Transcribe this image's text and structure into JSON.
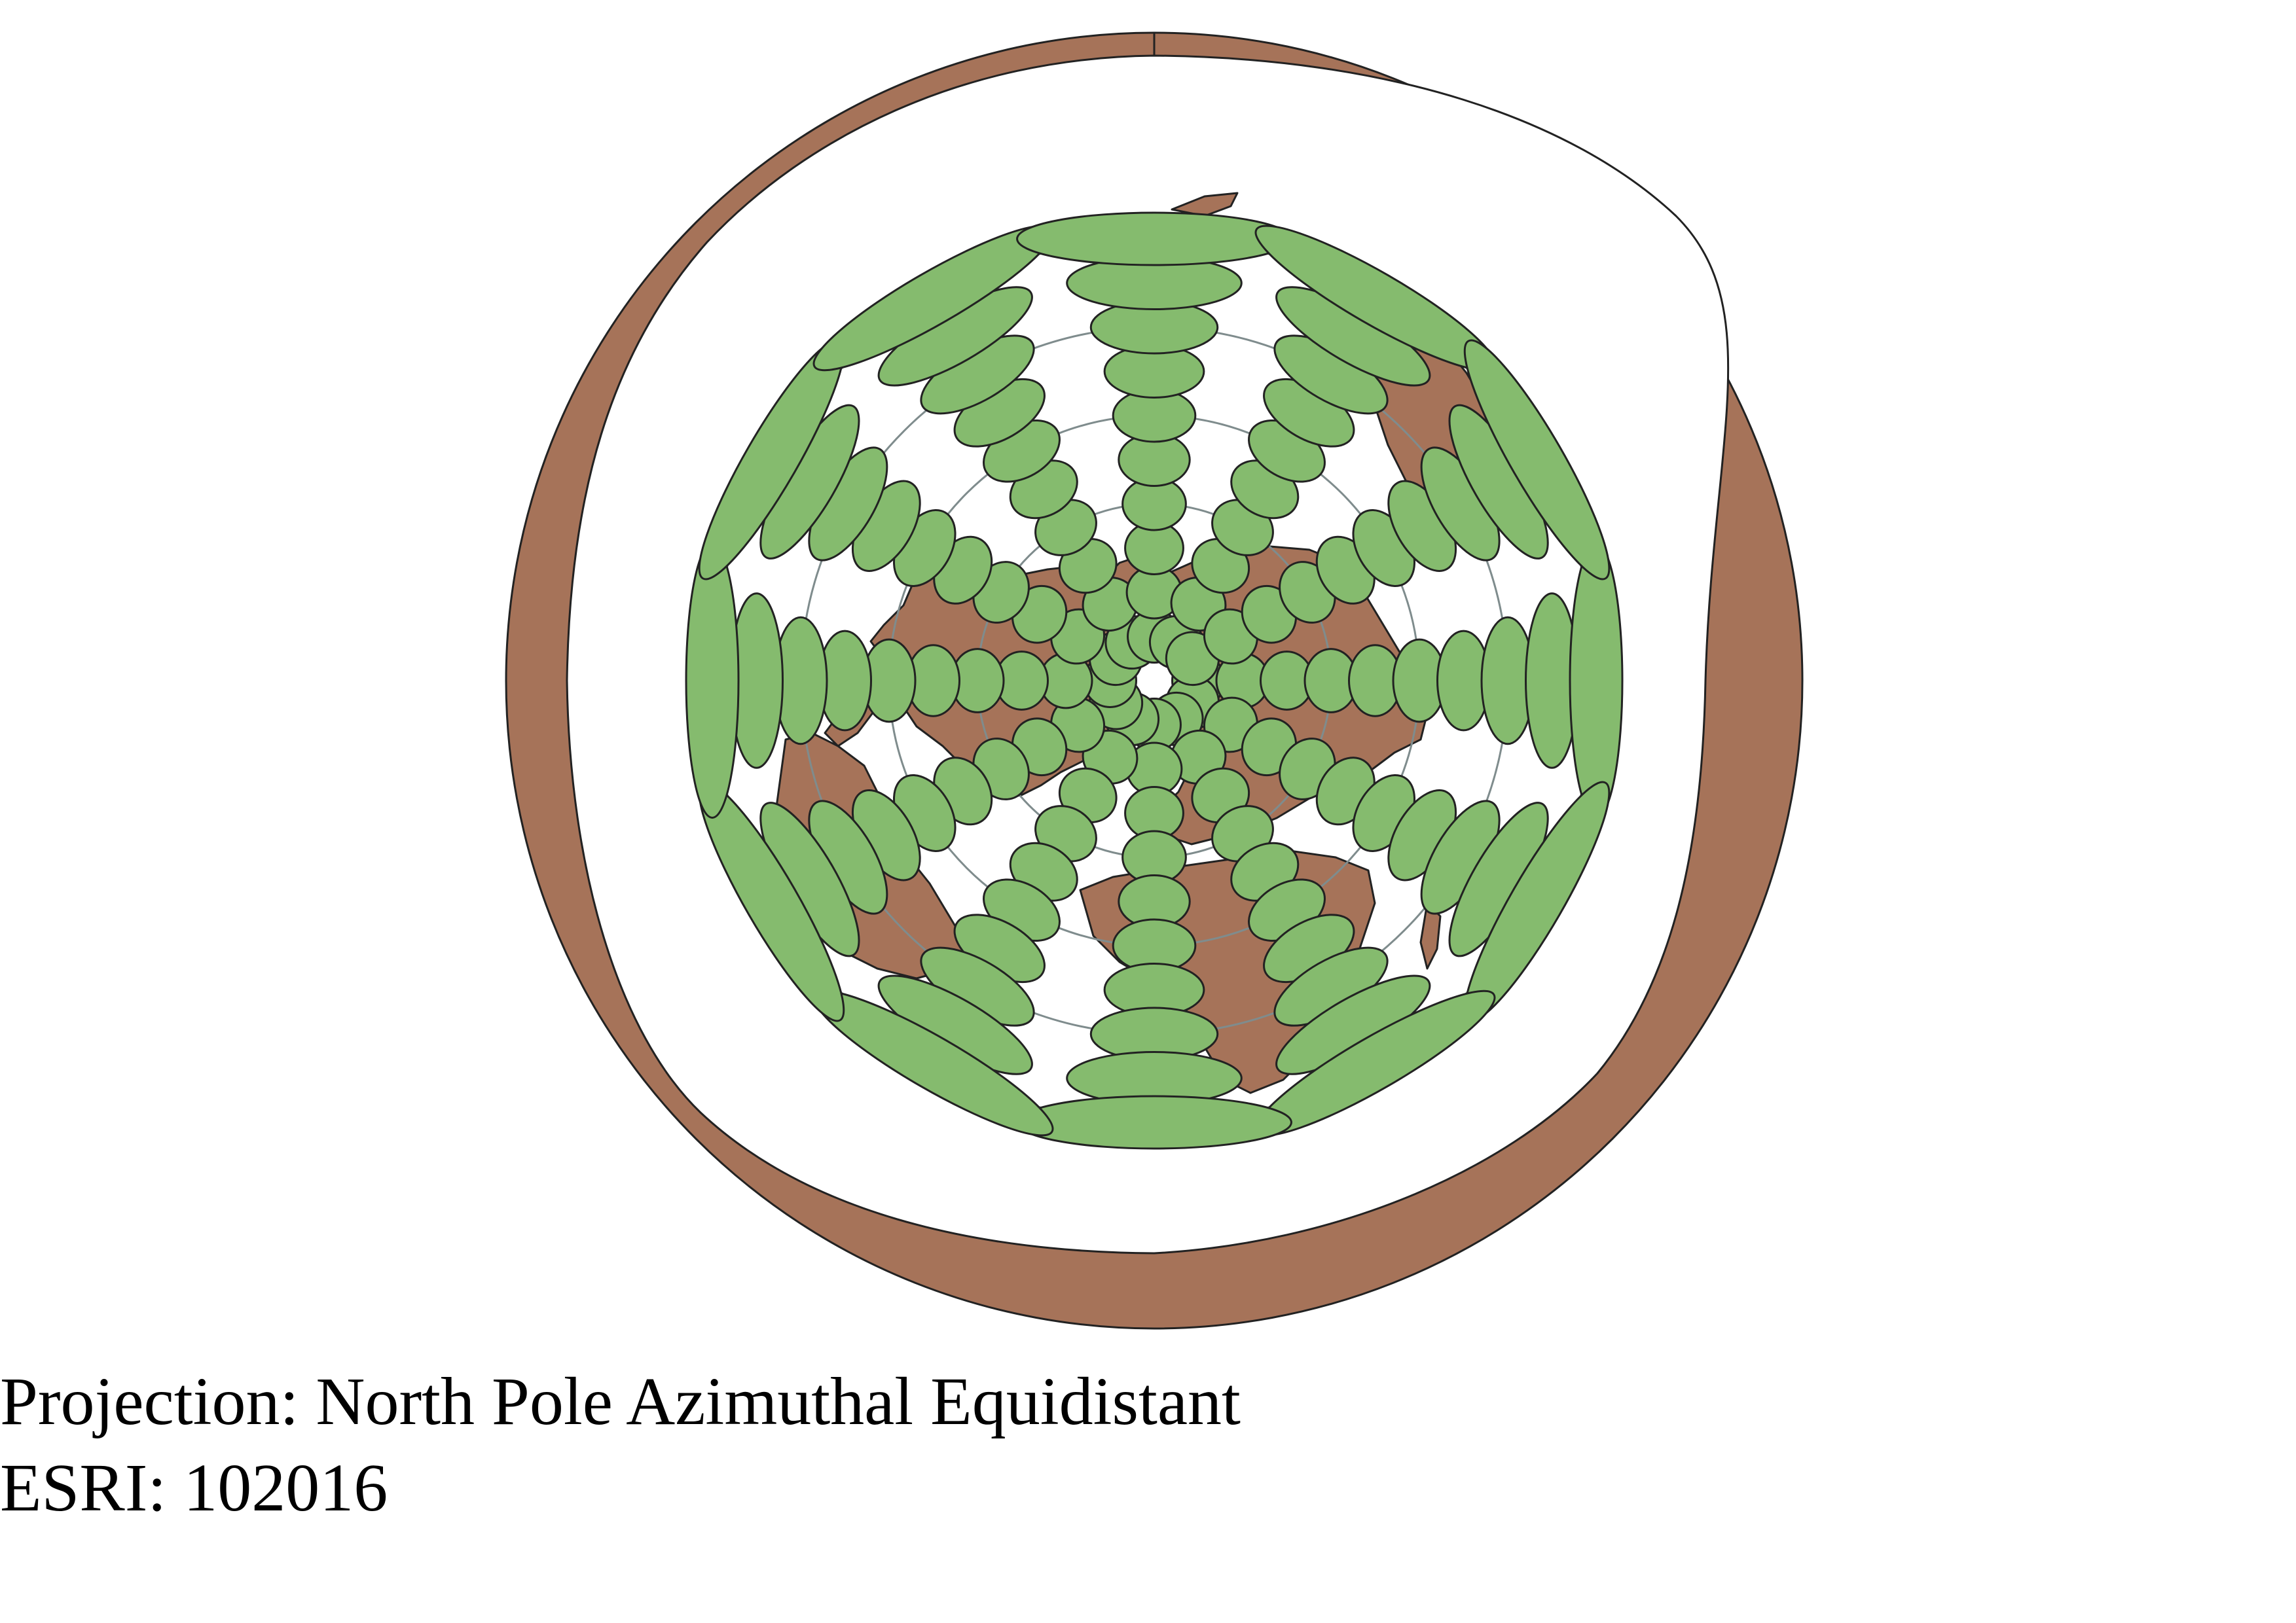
{
  "caption": {
    "projection_line": "Projection: North Pole Azimuthal Equidistant",
    "code_line": "ESRI: 102016"
  },
  "map": {
    "projection": "North Pole Azimuthal Equidistant",
    "center": "North Pole",
    "graticule_latitudes": [
      60,
      30,
      0,
      -30,
      -60
    ],
    "graticule_meridian_step_deg": 30,
    "indicatrix_latitudes": [
      75,
      60,
      45,
      30,
      15,
      0,
      -15,
      -30,
      -45,
      -60
    ],
    "land_color": "#A67359",
    "indicatrix_color": "#85BB6E",
    "graticule_color": "#7F8C8D",
    "outline_color": "#222222"
  }
}
